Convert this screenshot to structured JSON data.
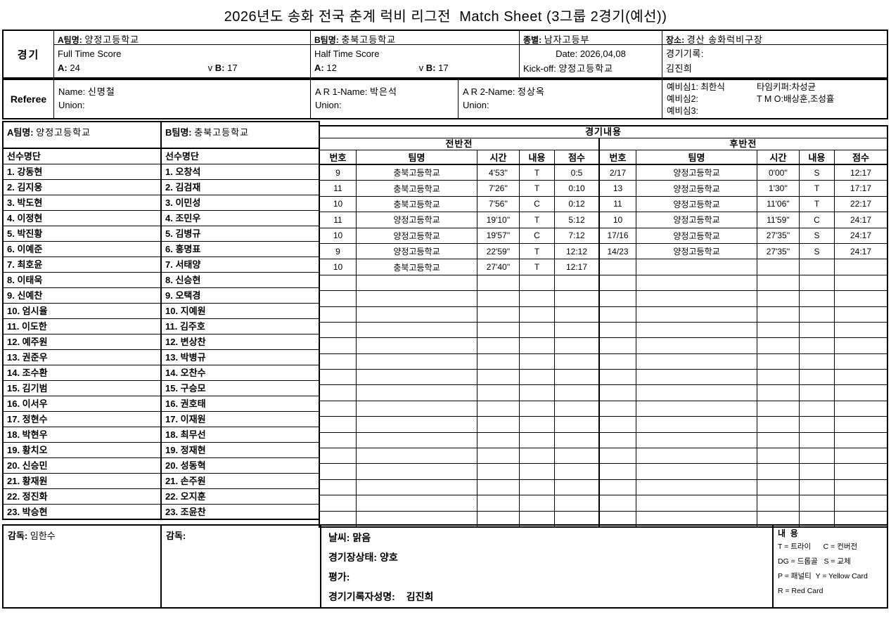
{
  "title": "2026년도 송화 전국 춘계 럭비 리그전  Match Sheet (3그룹 2경기(예선))",
  "match": {
    "section_label": "경기",
    "team_a_label": "A팀명:",
    "team_a": "양정고등학교",
    "team_b_label": "B팀명:",
    "team_b": "충북고등학교",
    "full_time_label": "Full Time Score",
    "half_time_label": "Half Time Score",
    "a_label": "A:",
    "b_label": "B:",
    "vs_label": "v",
    "full_time_a": "24",
    "full_time_b": "17",
    "half_time_a": "12",
    "half_time_b": "17",
    "category_label": "종별:",
    "category": "남자고등부",
    "date_label": "Date:",
    "date": "2026,04,08",
    "kickoff_label": "Kick-off:",
    "kickoff": "양정고등학교",
    "venue_label": "장소:",
    "venue": "경산 송화럭비구장",
    "record_label": "경기기록:",
    "recorder": "김진희"
  },
  "referee": {
    "section_label": "Referee",
    "name_label": "Name:",
    "name": "신명철",
    "union_label": "Union:",
    "union": "",
    "ar1_label": "A R 1-Name:",
    "ar1_name": "박은석",
    "ar2_label": "A R 2-Name:",
    "ar2_name": "정상옥",
    "officials": [
      {
        "left": "예비심1: 최한식",
        "right": "타임키퍼:차성균"
      },
      {
        "left": "예비심2:",
        "right": " T M O:배상훈,조성휼"
      },
      {
        "left": "예비심3:",
        "right": ""
      }
    ]
  },
  "roster": {
    "team_a_label": "A팀명:",
    "team_a": "양정고등학교",
    "team_b_label": "B팀명:",
    "team_b": "충북고등학교",
    "list_header": "선수명단",
    "team_a_players": [
      "1. 강동현",
      "2. 김지웅",
      "3. 박도현",
      "4. 이정현",
      "5. 박진황",
      "6. 이예준",
      "7. 최호윤",
      "8. 이태욱",
      "9. 신예찬",
      "10. 엄시율",
      "11. 이도한",
      "12. 예주원",
      "13. 권준우",
      "14. 조수환",
      "15. 김기범",
      "16. 이서우",
      "17. 정현수",
      "18. 박현우",
      "19. 황치오",
      "20. 신승민",
      "21. 황재원",
      "22. 정진화",
      "23. 박승현"
    ],
    "team_b_players": [
      "1. 오창석",
      "2. 김검재",
      "3. 이민성",
      "4. 조민우",
      "5. 김병규",
      "6. 홍명표",
      "7. 서태양",
      "8. 신승현",
      "9. 오택경",
      "10. 지예원",
      "11. 김주호",
      "12. 변상찬",
      "13. 박병규",
      "14. 오찬수",
      "15. 구승모",
      "16. 권호태",
      "17. 이재원",
      "18. 최무선",
      "19. 정재현",
      "20. 성동혁",
      "21. 손주원",
      "22. 오지훈",
      "23. 조윤찬"
    ]
  },
  "match_log": {
    "section_label": "경기내용",
    "first_half_label": "전반전",
    "second_half_label": "후반전",
    "columns": [
      "번호",
      "팀명",
      "시간",
      "내용",
      "점수"
    ],
    "first_half": [
      {
        "no": "9",
        "team": "충북고등학교",
        "time": "4'53''",
        "type": "T",
        "score": "0:5"
      },
      {
        "no": "11",
        "team": "충북고등학교",
        "time": "7'26''",
        "type": "T",
        "score": "0:10"
      },
      {
        "no": "10",
        "team": "충북고등학교",
        "time": "7'56''",
        "type": "C",
        "score": "0:12"
      },
      {
        "no": "11",
        "team": "양정고등학교",
        "time": "19'10''",
        "type": "T",
        "score": "5:12"
      },
      {
        "no": "10",
        "team": "양정고등학교",
        "time": "19'57''",
        "type": "C",
        "score": "7:12"
      },
      {
        "no": "9",
        "team": "양정고등학교",
        "time": "22'59''",
        "type": "T",
        "score": "12:12"
      },
      {
        "no": "10",
        "team": "충북고등학교",
        "time": "27'40''",
        "type": "T",
        "score": "12:17"
      }
    ],
    "second_half": [
      {
        "no": "2/17",
        "team": "양정고등학교",
        "time": "0'00''",
        "type": "S",
        "score": "12:17"
      },
      {
        "no": "13",
        "team": "양정고등학교",
        "time": "1'30''",
        "type": "T",
        "score": "17:17"
      },
      {
        "no": "11",
        "team": "양정고등학교",
        "time": "11'06''",
        "type": "T",
        "score": "22:17"
      },
      {
        "no": "10",
        "team": "양정고등학교",
        "time": "11'59''",
        "type": "C",
        "score": "24:17"
      },
      {
        "no": "17/16",
        "team": "양정고등학교",
        "time": "27'35''",
        "type": "S",
        "score": "24:17"
      },
      {
        "no": "14/23",
        "team": "양정고등학교",
        "time": "27'35''",
        "type": "S",
        "score": "24:17"
      }
    ]
  },
  "footer": {
    "coach_label": "감독:",
    "coach_a": "임한수",
    "coach_b": "",
    "weather_label": "날씨:",
    "weather": "맑음",
    "pitch_label": "경기장상태:",
    "pitch": "양호",
    "evaluation_label": "평가:",
    "evaluation": "",
    "recorder_label": "경기기록자성명:",
    "recorder": "김진희",
    "legend_title": "내  용",
    "legend_lines": [
      "T = 트라이      C = 컨버전",
      "DG = 드롭골   S = 교체",
      "P = 패널티  Y = Yellow Card",
      "R = Red Card"
    ]
  }
}
